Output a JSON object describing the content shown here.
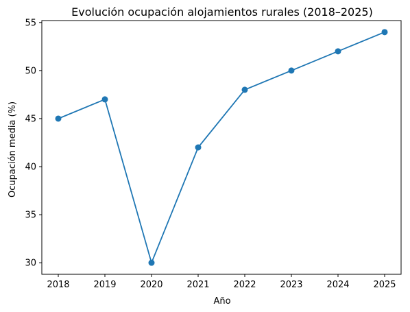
{
  "chart_data": {
    "type": "line",
    "title": "Evolución ocupación alojamientos rurales (2018–2025)",
    "xlabel": "Año",
    "ylabel": "Ocupación media (%)",
    "x": [
      "2018",
      "2019",
      "2020",
      "2021",
      "2022",
      "2023",
      "2024",
      "2025"
    ],
    "series": [
      {
        "values": [
          45,
          47,
          30,
          42,
          48,
          50,
          52,
          54
        ],
        "color": "#1f77b4",
        "marker": "circle"
      }
    ],
    "yticks": [
      30,
      35,
      40,
      45,
      50,
      55
    ],
    "ylim": [
      28.8,
      55.2
    ],
    "grid": false,
    "legend": "none"
  }
}
